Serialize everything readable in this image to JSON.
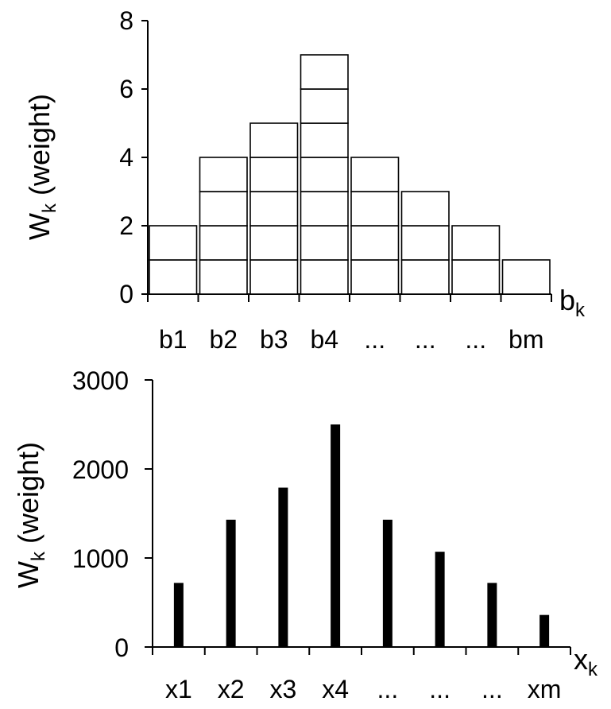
{
  "chart_data": [
    {
      "type": "bar",
      "style": "stacked-unit-blocks",
      "categories": [
        "b1",
        "b2",
        "b3",
        "b4",
        "...",
        "...",
        "...",
        "bm"
      ],
      "values": [
        2,
        4,
        5,
        7,
        4,
        3,
        2,
        1
      ],
      "ylabel_main": "W",
      "ylabel_sub": "k",
      "ylabel_rest": " (weight)",
      "xlabel_main": "b",
      "xlabel_sub": "k",
      "yticks": [
        "0",
        "2",
        "4",
        "6",
        "8"
      ],
      "ylim": [
        0,
        8
      ],
      "grid": false
    },
    {
      "type": "bar",
      "categories": [
        "x1",
        "x2",
        "x3",
        "x4",
        "...",
        "...",
        "...",
        "xm"
      ],
      "values": [
        720,
        1430,
        1790,
        2500,
        1430,
        1070,
        720,
        360
      ],
      "ylabel_main": "W",
      "ylabel_sub": "k",
      "ylabel_rest": " (weight)",
      "xlabel_main": "x",
      "xlabel_sub": "k",
      "yticks": [
        "0",
        "1000",
        "2000",
        "3000"
      ],
      "ylim": [
        0,
        3000
      ],
      "grid": false
    }
  ]
}
